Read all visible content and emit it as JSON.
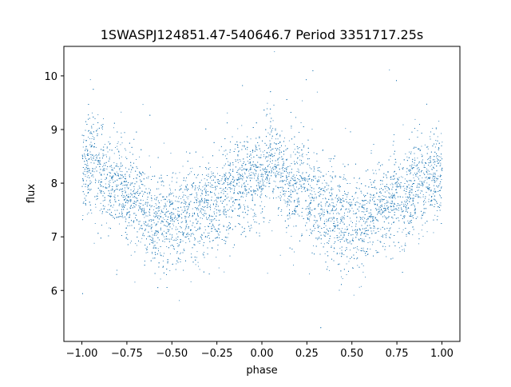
{
  "chart_data": {
    "type": "scatter",
    "title": "1SWASPJ124851.47-540646.7 Period 3351717.25s",
    "xlabel": "phase",
    "ylabel": "flux",
    "xlim": [
      -1.1,
      1.1
    ],
    "ylim": [
      5.05,
      10.55
    ],
    "x_ticks": [
      -1.0,
      -0.75,
      -0.5,
      -0.25,
      0.0,
      0.25,
      0.5,
      0.75,
      1.0
    ],
    "x_tick_labels": [
      "−1.00",
      "−0.75",
      "−0.50",
      "−0.25",
      "0.00",
      "0.25",
      "0.50",
      "0.75",
      "1.00"
    ],
    "y_ticks": [
      6,
      7,
      8,
      9,
      10
    ],
    "y_tick_labels": [
      "6",
      "7",
      "8",
      "9",
      "10"
    ],
    "grid": false,
    "legend": "none",
    "marker_color": "#1f77b4",
    "series": [
      {
        "points_description_free": true,
        "x_range": [
          -1.0,
          1.0
        ],
        "profile": [
          [
            -1.0,
            8.2
          ],
          [
            -0.95,
            8.5
          ],
          [
            -0.9,
            8.15
          ],
          [
            -0.85,
            7.95
          ],
          [
            -0.8,
            8.05
          ],
          [
            -0.75,
            7.85
          ],
          [
            -0.7,
            7.7
          ],
          [
            -0.65,
            7.5
          ],
          [
            -0.6,
            7.35
          ],
          [
            -0.55,
            7.3
          ],
          [
            -0.5,
            7.35
          ],
          [
            -0.45,
            7.25
          ],
          [
            -0.4,
            7.45
          ],
          [
            -0.35,
            7.55
          ],
          [
            -0.3,
            7.6
          ],
          [
            -0.25,
            7.65
          ],
          [
            -0.2,
            7.8
          ],
          [
            -0.15,
            7.9
          ],
          [
            -0.1,
            7.95
          ],
          [
            -0.05,
            8.1
          ],
          [
            0.0,
            8.2
          ],
          [
            0.05,
            8.5
          ],
          [
            0.1,
            8.15
          ],
          [
            0.15,
            7.95
          ],
          [
            0.2,
            8.05
          ],
          [
            0.25,
            7.85
          ],
          [
            0.3,
            7.7
          ],
          [
            0.35,
            7.5
          ],
          [
            0.4,
            7.35
          ],
          [
            0.45,
            7.3
          ],
          [
            0.5,
            7.35
          ],
          [
            0.55,
            7.25
          ],
          [
            0.6,
            7.45
          ],
          [
            0.65,
            7.55
          ],
          [
            0.7,
            7.6
          ],
          [
            0.75,
            7.65
          ],
          [
            0.8,
            7.8
          ],
          [
            0.85,
            7.9
          ],
          [
            0.9,
            7.95
          ],
          [
            0.95,
            8.1
          ],
          [
            1.0,
            8.2
          ]
        ],
        "scatter_std": 0.45
      }
    ]
  }
}
